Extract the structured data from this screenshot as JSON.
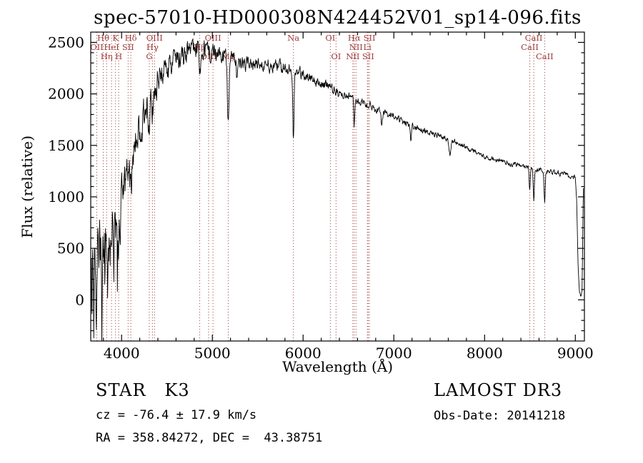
{
  "window": {
    "background": "#ffffff"
  },
  "annotations": {
    "object_type": "STAR   K3",
    "survey": "LAMOST DR3",
    "cz": "cz = -76.4 ± 17.9 km/s",
    "obs_date": "Obs-Date: 20141218",
    "ra_dec": "RA = 358.84272, DEC =  43.38751"
  },
  "chart_data": {
    "type": "line",
    "title": "spec-57010-HD000308N424452V01_sp14-096.fits",
    "xlabel": "Wavelength (Å)",
    "ylabel": "Flux (relative)",
    "xlim": [
      3660,
      9100
    ],
    "ylim": [
      -400,
      2600
    ],
    "x_major_ticks": [
      4000,
      5000,
      6000,
      7000,
      8000,
      9000
    ],
    "x_minor_step": 200,
    "y_major_ticks": [
      0,
      500,
      1000,
      1500,
      2000,
      2500
    ],
    "y_minor_step": 100,
    "grid": false,
    "legend": "none",
    "axis_color": "#000000",
    "spectrum_color": "#000000",
    "line_marker_color": "#9e3a3a",
    "series": [
      {
        "name": "flux (relative)",
        "color": "#000000",
        "style": "noisy-spectrum"
      }
    ],
    "continuum_anchors": [
      [
        3660,
        120
      ],
      [
        3680,
        300
      ],
      [
        3700,
        380
      ],
      [
        3720,
        300
      ],
      [
        3740,
        430
      ],
      [
        3760,
        380
      ],
      [
        3780,
        520
      ],
      [
        3800,
        480
      ],
      [
        3820,
        600
      ],
      [
        3840,
        560
      ],
      [
        3860,
        680
      ],
      [
        3880,
        700
      ],
      [
        3900,
        730
      ],
      [
        3920,
        700
      ],
      [
        3933,
        560
      ],
      [
        3950,
        640
      ],
      [
        3968,
        540
      ],
      [
        3985,
        820
      ],
      [
        4000,
        930
      ],
      [
        4020,
        990
      ],
      [
        4050,
        1090
      ],
      [
        4080,
        1170
      ],
      [
        4100,
        1230
      ],
      [
        4130,
        1430
      ],
      [
        4160,
        1530
      ],
      [
        4200,
        1690
      ],
      [
        4240,
        1790
      ],
      [
        4280,
        1900
      ],
      [
        4320,
        1960
      ],
      [
        4360,
        2030
      ],
      [
        4400,
        2150
      ],
      [
        4440,
        2190
      ],
      [
        4480,
        2240
      ],
      [
        4520,
        2260
      ],
      [
        4560,
        2300
      ],
      [
        4600,
        2330
      ],
      [
        4650,
        2360
      ],
      [
        4700,
        2390
      ],
      [
        4750,
        2420
      ],
      [
        4800,
        2450
      ],
      [
        4850,
        2430
      ],
      [
        4900,
        2440
      ],
      [
        4950,
        2410
      ],
      [
        5000,
        2400
      ],
      [
        5060,
        2380
      ],
      [
        5120,
        2360
      ],
      [
        5180,
        2340
      ],
      [
        5240,
        2320
      ],
      [
        5300,
        2310
      ],
      [
        5360,
        2290
      ],
      [
        5420,
        2270
      ],
      [
        5480,
        2290
      ],
      [
        5540,
        2270
      ],
      [
        5600,
        2280
      ],
      [
        5660,
        2260
      ],
      [
        5720,
        2270
      ],
      [
        5780,
        2250
      ],
      [
        5840,
        2240
      ],
      [
        5900,
        2230
      ],
      [
        5960,
        2210
      ],
      [
        6020,
        2180
      ],
      [
        6080,
        2150
      ],
      [
        6140,
        2130
      ],
      [
        6200,
        2100
      ],
      [
        6260,
        2080
      ],
      [
        6320,
        2050
      ],
      [
        6380,
        2020
      ],
      [
        6440,
        2000
      ],
      [
        6500,
        1980
      ],
      [
        6560,
        1960
      ],
      [
        6620,
        1930
      ],
      [
        6680,
        1910
      ],
      [
        6740,
        1890
      ],
      [
        6800,
        1860
      ],
      [
        6860,
        1830
      ],
      [
        6920,
        1810
      ],
      [
        6980,
        1780
      ],
      [
        7040,
        1760
      ],
      [
        7100,
        1730
      ],
      [
        7160,
        1710
      ],
      [
        7220,
        1680
      ],
      [
        7280,
        1660
      ],
      [
        7340,
        1640
      ],
      [
        7400,
        1620
      ],
      [
        7460,
        1600
      ],
      [
        7520,
        1590
      ],
      [
        7580,
        1570
      ],
      [
        7640,
        1550
      ],
      [
        7700,
        1520
      ],
      [
        7760,
        1490
      ],
      [
        7820,
        1470
      ],
      [
        7880,
        1440
      ],
      [
        7940,
        1420
      ],
      [
        8000,
        1400
      ],
      [
        8060,
        1380
      ],
      [
        8120,
        1365
      ],
      [
        8180,
        1350
      ],
      [
        8240,
        1335
      ],
      [
        8300,
        1320
      ],
      [
        8360,
        1305
      ],
      [
        8420,
        1290
      ],
      [
        8480,
        1280
      ],
      [
        8540,
        1270
      ],
      [
        8600,
        1260
      ],
      [
        8660,
        1250
      ],
      [
        8720,
        1245
      ],
      [
        8780,
        1235
      ],
      [
        8840,
        1225
      ],
      [
        8900,
        1215
      ],
      [
        8950,
        1205
      ],
      [
        9000,
        1190
      ],
      [
        9015,
        950
      ],
      [
        9030,
        350
      ],
      [
        9045,
        70
      ],
      [
        9060,
        45
      ],
      [
        9075,
        120
      ],
      [
        9088,
        1080
      ]
    ],
    "noise_envelope": [
      [
        3660,
        300
      ],
      [
        3750,
        285
      ],
      [
        3850,
        265
      ],
      [
        3950,
        235
      ],
      [
        4050,
        205
      ],
      [
        4150,
        175
      ],
      [
        4250,
        155
      ],
      [
        4400,
        125
      ],
      [
        4600,
        110
      ],
      [
        4800,
        100
      ],
      [
        5000,
        90
      ],
      [
        5200,
        75
      ],
      [
        5400,
        65
      ],
      [
        5600,
        60
      ],
      [
        5800,
        55
      ],
      [
        6000,
        50
      ],
      [
        6300,
        42
      ],
      [
        6600,
        35
      ],
      [
        7000,
        30
      ],
      [
        7400,
        26
      ],
      [
        7800,
        24
      ],
      [
        8200,
        22
      ],
      [
        8600,
        24
      ],
      [
        8900,
        26
      ],
      [
        9100,
        20
      ]
    ],
    "absorption_features": [
      [
        3672,
        2.5,
        500
      ],
      [
        3695,
        2,
        480
      ],
      [
        3722,
        2.5,
        650
      ],
      [
        3752,
        2,
        550
      ],
      [
        3783,
        2.5,
        780
      ],
      [
        3815,
        2,
        640
      ],
      [
        3845,
        2.5,
        500
      ],
      [
        3875,
        2,
        460
      ],
      [
        3912,
        2.5,
        580
      ],
      [
        3955,
        2,
        500
      ],
      [
        4102,
        7,
        240
      ],
      [
        4227,
        5,
        160
      ],
      [
        4305,
        10,
        280
      ],
      [
        4340,
        7,
        180
      ],
      [
        4383,
        5,
        180
      ],
      [
        4861,
        7,
        230
      ],
      [
        5175,
        9,
        600
      ],
      [
        5270,
        6,
        180
      ],
      [
        5893,
        7,
        700
      ],
      [
        6563,
        6,
        280
      ],
      [
        6867,
        8,
        140
      ],
      [
        7186,
        6,
        150
      ],
      [
        7620,
        10,
        140
      ],
      [
        8498,
        6,
        220
      ],
      [
        8542,
        6,
        300
      ],
      [
        8662,
        6,
        300
      ]
    ],
    "spectral_lines": [
      {
        "wavelength": 3727,
        "label": "OII",
        "row": 2
      },
      {
        "wavelength": 3798,
        "label": "Hθ",
        "row": 1
      },
      {
        "wavelength": 3835,
        "label": "Hη",
        "row": 3
      },
      {
        "wavelength": 3889,
        "label": "HeI",
        "row": 2
      },
      {
        "wavelength": 3933,
        "label": "K",
        "row": 1
      },
      {
        "wavelength": 3968,
        "label": "H",
        "row": 3
      },
      {
        "wavelength": 4072,
        "label": "SII",
        "row": 2
      },
      {
        "wavelength": 4102,
        "label": "Hδ",
        "row": 1
      },
      {
        "wavelength": 4305,
        "label": "G",
        "row": 3
      },
      {
        "wavelength": 4340,
        "label": "Hγ",
        "row": 2
      },
      {
        "wavelength": 4363,
        "label": "OIII",
        "row": 1
      },
      {
        "wavelength": 4861,
        "label": "Hβ",
        "row": 2
      },
      {
        "wavelength": 4959,
        "label": "OIII",
        "row": 3
      },
      {
        "wavelength": 5007,
        "label": "OIII",
        "row": 1
      },
      {
        "wavelength": 5175,
        "label": "Mg",
        "row": 3
      },
      {
        "wavelength": 5893,
        "label": "Na",
        "row": 1
      },
      {
        "wavelength": 6300,
        "label": "OI",
        "row": 1
      },
      {
        "wavelength": 6363,
        "label": "OI",
        "row": 3
      },
      {
        "wavelength": 6548,
        "label": "NII",
        "row": 3
      },
      {
        "wavelength": 6563,
        "label": "Hα",
        "row": 1
      },
      {
        "wavelength": 6583,
        "label": "NII",
        "row": 2
      },
      {
        "wavelength": 6708,
        "label": "Li",
        "row": 2
      },
      {
        "wavelength": 6717,
        "label": "SII",
        "row": 3
      },
      {
        "wavelength": 6731,
        "label": "SII",
        "row": 1
      },
      {
        "wavelength": 8498,
        "label": "CaII",
        "row": 2
      },
      {
        "wavelength": 8542,
        "label": "CaII",
        "row": 1
      },
      {
        "wavelength": 8662,
        "label": "CaII",
        "row": 3
      }
    ]
  }
}
